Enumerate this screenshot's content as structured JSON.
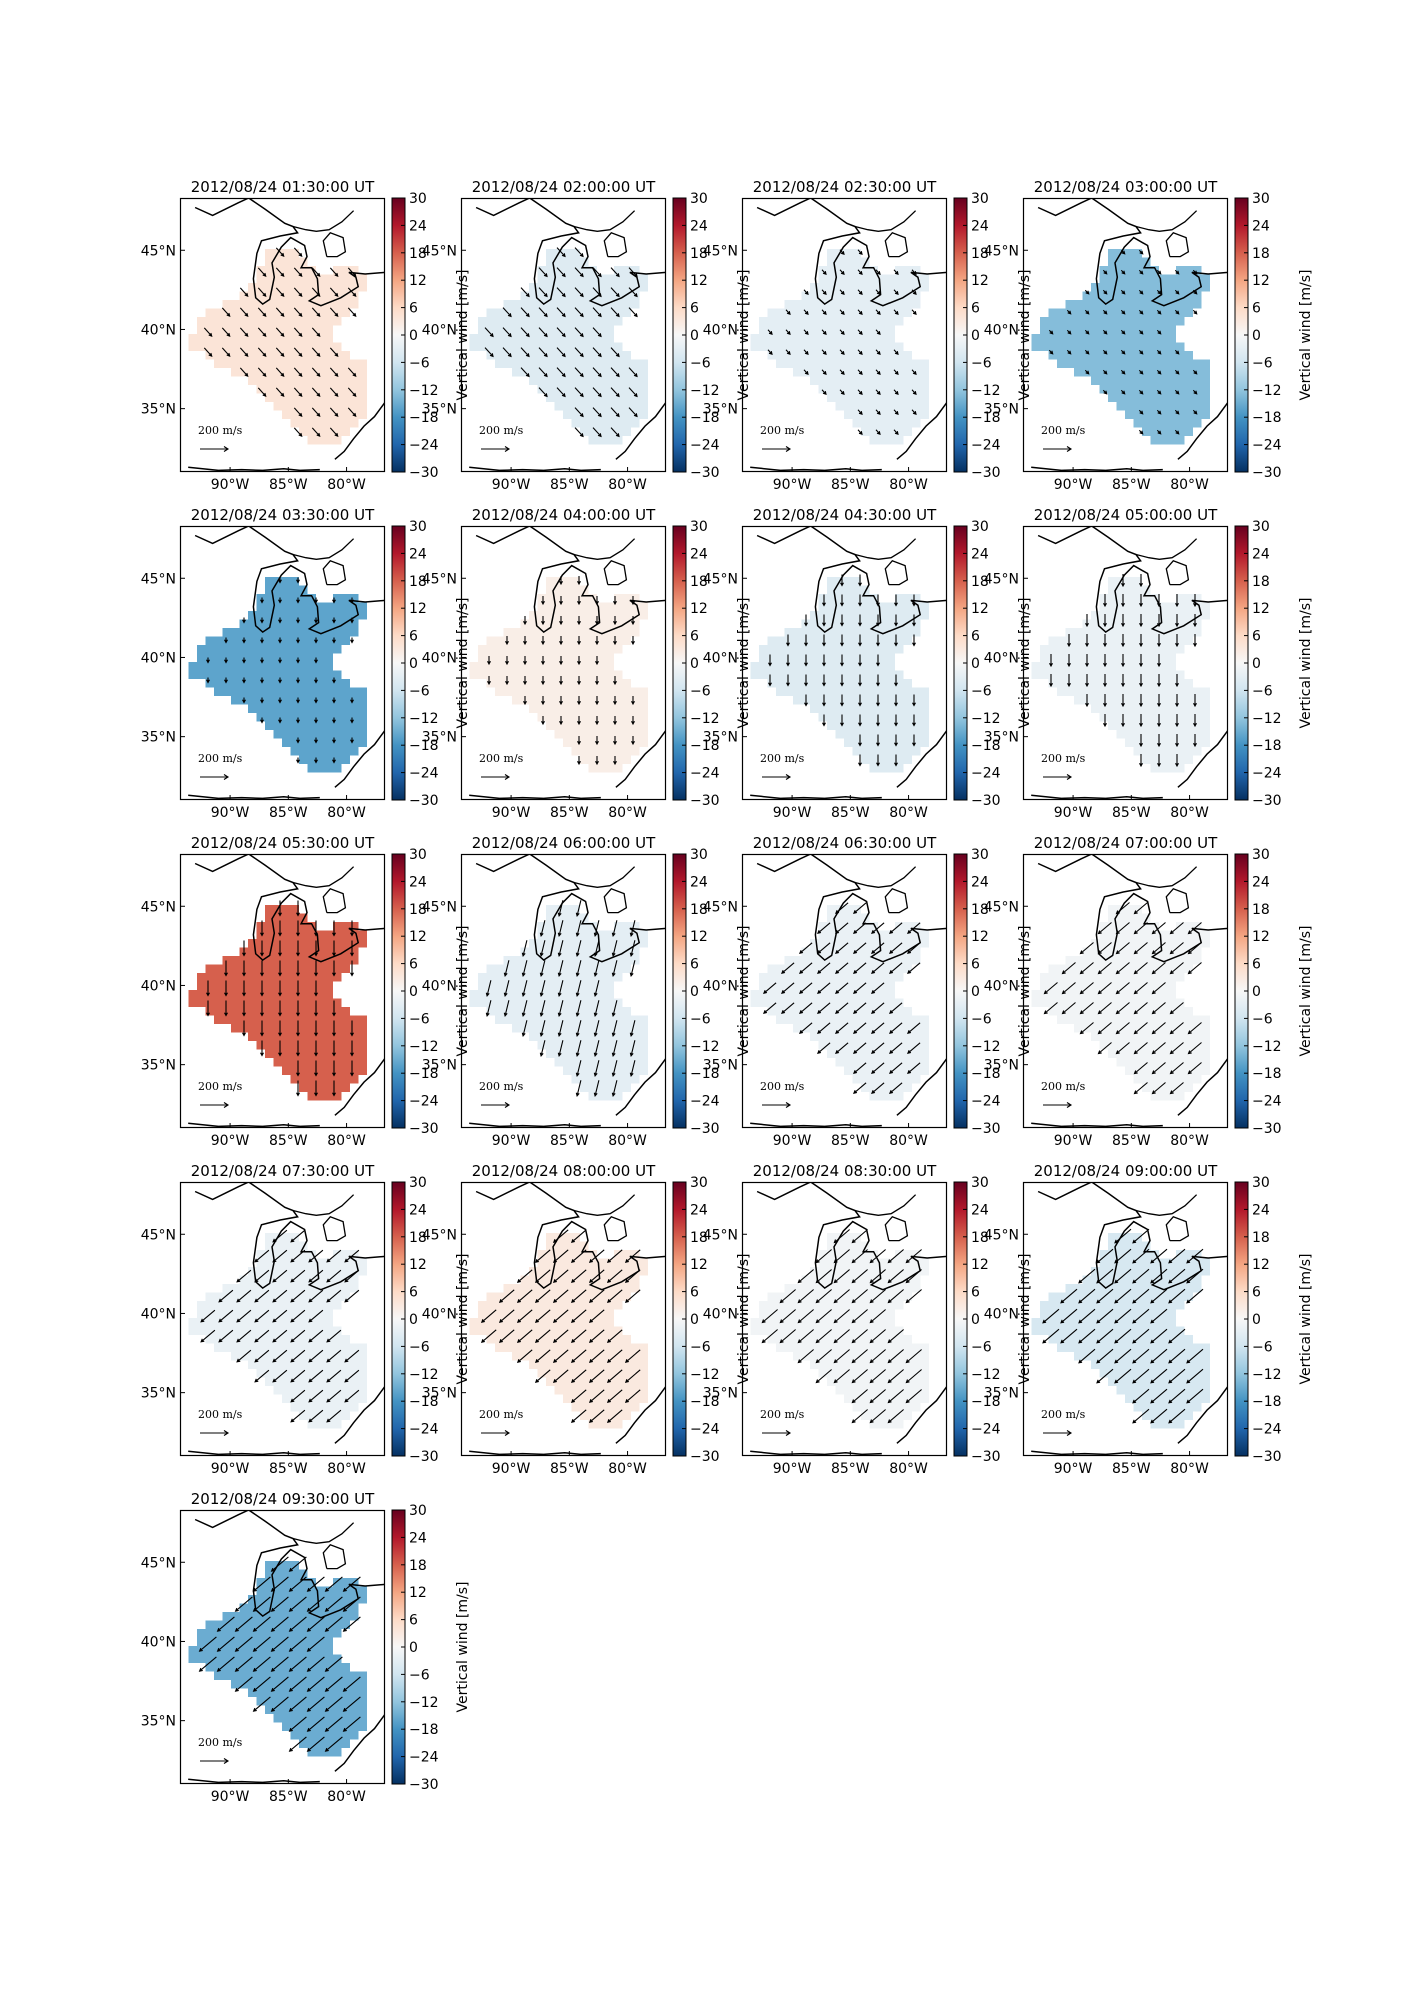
{
  "figure": {
    "colorbar_label": "Vertical wind [m/s]",
    "colorbar_ticks": [
      30,
      24,
      18,
      12,
      6,
      0,
      -6,
      -12,
      -18,
      -24,
      -30
    ],
    "colormap": "RdBu_r",
    "vmin": -30,
    "vmax": 30,
    "lon_ticks": [
      "90°W",
      "85°W",
      "80°W"
    ],
    "lat_ticks": [
      "45°N",
      "40°N",
      "35°N"
    ],
    "scale_label": "200 m/s",
    "colors": {
      "red_dark": "#67001f",
      "red_mid": "#d6604d",
      "neutral": "#f7f7f7",
      "blue_mid": "#4393c3",
      "blue_dark": "#053061"
    }
  },
  "chart_data": [
    {
      "type": "heatmap",
      "title": "2012/08/24 01:30:00 UT",
      "vertical_wind": 4,
      "wind_direction": "southeast",
      "wind_speed_ratio": 0.35
    },
    {
      "type": "heatmap",
      "title": "2012/08/24 02:00:00 UT",
      "vertical_wind": -4,
      "wind_direction": "southeast",
      "wind_speed_ratio": 0.4
    },
    {
      "type": "heatmap",
      "title": "2012/08/24 02:30:00 UT",
      "vertical_wind": -3,
      "wind_direction": "southeast",
      "wind_speed_ratio": 0.1
    },
    {
      "type": "heatmap",
      "title": "2012/08/24 03:00:00 UT",
      "vertical_wind": -13,
      "wind_direction": "southeast",
      "wind_speed_ratio": 0.05
    },
    {
      "type": "heatmap",
      "title": "2012/08/24 03:30:00 UT",
      "vertical_wind": -16,
      "wind_direction": "south",
      "wind_speed_ratio": 0.05
    },
    {
      "type": "heatmap",
      "title": "2012/08/24 04:00:00 UT",
      "vertical_wind": 2,
      "wind_direction": "south",
      "wind_speed_ratio": 0.2
    },
    {
      "type": "heatmap",
      "title": "2012/08/24 04:30:00 UT",
      "vertical_wind": -4,
      "wind_direction": "south",
      "wind_speed_ratio": 0.35
    },
    {
      "type": "heatmap",
      "title": "2012/08/24 05:00:00 UT",
      "vertical_wind": -2,
      "wind_direction": "south",
      "wind_speed_ratio": 0.4
    },
    {
      "type": "heatmap",
      "title": "2012/08/24 05:30:00 UT",
      "vertical_wind": 18,
      "wind_direction": "south",
      "wind_speed_ratio": 0.55
    },
    {
      "type": "heatmap",
      "title": "2012/08/24 06:00:00 UT",
      "vertical_wind": -3,
      "wind_direction": "south-southwest",
      "wind_speed_ratio": 0.6
    },
    {
      "type": "heatmap",
      "title": "2012/08/24 06:30:00 UT",
      "vertical_wind": -2,
      "wind_direction": "southwest",
      "wind_speed_ratio": 0.6
    },
    {
      "type": "heatmap",
      "title": "2012/08/24 07:00:00 UT",
      "vertical_wind": -1,
      "wind_direction": "southwest",
      "wind_speed_ratio": 0.65
    },
    {
      "type": "heatmap",
      "title": "2012/08/24 07:30:00 UT",
      "vertical_wind": -2,
      "wind_direction": "southwest",
      "wind_speed_ratio": 0.7
    },
    {
      "type": "heatmap",
      "title": "2012/08/24 08:00:00 UT",
      "vertical_wind": 3,
      "wind_direction": "southwest",
      "wind_speed_ratio": 0.75
    },
    {
      "type": "heatmap",
      "title": "2012/08/24 08:30:00 UT",
      "vertical_wind": -1,
      "wind_direction": "southwest",
      "wind_speed_ratio": 0.8
    },
    {
      "type": "heatmap",
      "title": "2012/08/24 09:00:00 UT",
      "vertical_wind": -5,
      "wind_direction": "southwest",
      "wind_speed_ratio": 0.85
    },
    {
      "type": "heatmap",
      "title": "2012/08/24 09:30:00 UT",
      "vertical_wind": -15,
      "wind_direction": "southwest",
      "wind_speed_ratio": 0.9
    }
  ]
}
